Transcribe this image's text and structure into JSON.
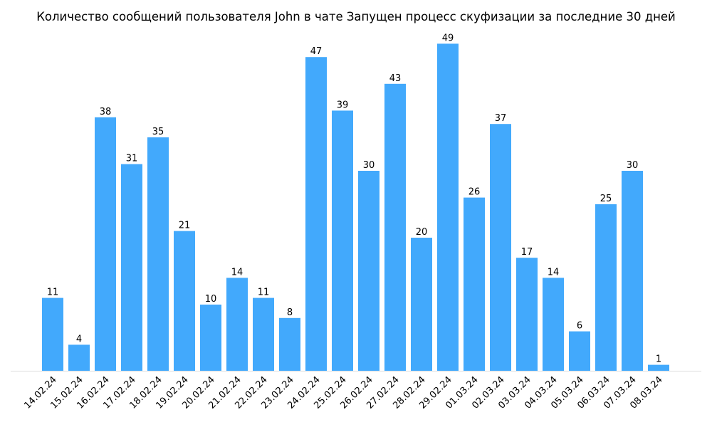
{
  "chart_data": {
    "type": "bar",
    "title": "Количество сообщений пользователя John в чате Запущен процесс скуфизации за последние 30 дней",
    "xlabel": "",
    "ylabel": "",
    "categories": [
      "14.02.24",
      "15.02.24",
      "16.02.24",
      "17.02.24",
      "18.02.24",
      "19.02.24",
      "20.02.24",
      "21.02.24",
      "22.02.24",
      "23.02.24",
      "24.02.24",
      "25.02.24",
      "26.02.24",
      "27.02.24",
      "28.02.24",
      "29.02.24",
      "01.03.24",
      "02.03.24",
      "03.03.24",
      "04.03.24",
      "05.03.24",
      "06.03.24",
      "07.03.24",
      "08.03.24"
    ],
    "values": [
      11,
      4,
      38,
      31,
      35,
      21,
      10,
      14,
      11,
      8,
      47,
      39,
      30,
      43,
      20,
      49,
      26,
      37,
      17,
      14,
      6,
      25,
      30,
      1
    ],
    "ylim": [
      0,
      49
    ],
    "grid": false,
    "bar_color": "#42a9fc",
    "axis_color": "#dddddd"
  }
}
